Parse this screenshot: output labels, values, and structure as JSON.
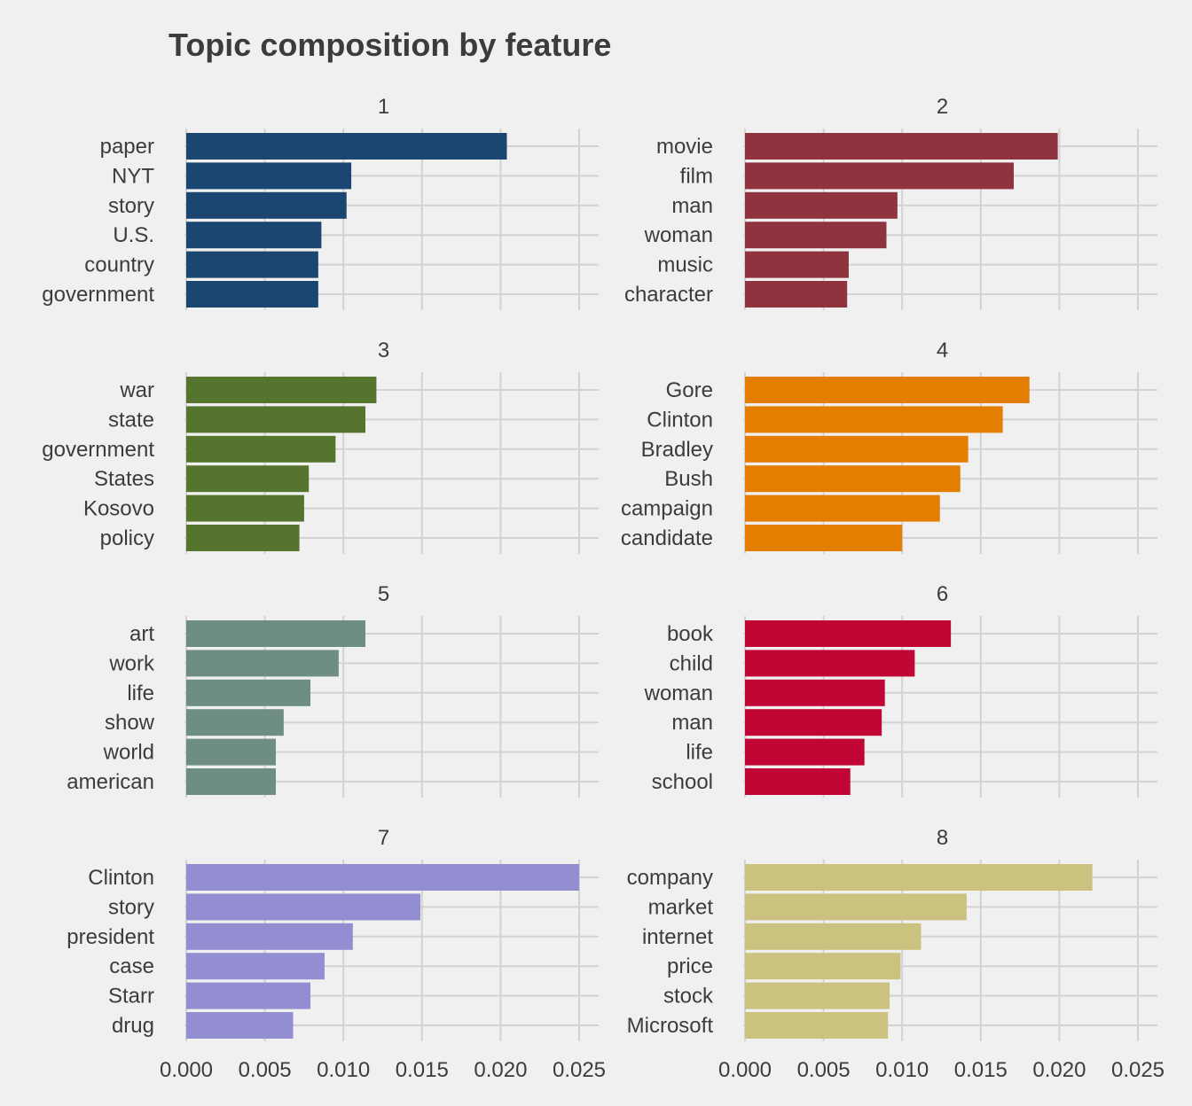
{
  "chart_data": {
    "type": "bar",
    "orientation": "horizontal",
    "title": "Topic composition by feature",
    "xlabel": "",
    "ylabel": "",
    "xlim": [
      0,
      0.026
    ],
    "x_ticks": [
      "0.000",
      "0.005",
      "0.010",
      "0.015",
      "0.020",
      "0.025"
    ],
    "x_tick_values": [
      0,
      0.005,
      0.01,
      0.015,
      0.02,
      0.025
    ],
    "grid": true,
    "legend": "none",
    "panels": [
      {
        "label": "1",
        "color": "#1b4671",
        "categories": [
          "paper",
          "NYT",
          "story",
          "U.S.",
          "country",
          "government"
        ],
        "values": [
          0.0204,
          0.0105,
          0.0102,
          0.0086,
          0.0084,
          0.0084
        ]
      },
      {
        "label": "2",
        "color": "#8f343e",
        "categories": [
          "movie",
          "film",
          "man",
          "woman",
          "music",
          "character"
        ],
        "values": [
          0.0199,
          0.0171,
          0.0097,
          0.009,
          0.0066,
          0.0065
        ]
      },
      {
        "label": "3",
        "color": "#55752f",
        "categories": [
          "war",
          "state",
          "government",
          "States",
          "Kosovo",
          "policy"
        ],
        "values": [
          0.0121,
          0.0114,
          0.0095,
          0.0078,
          0.0075,
          0.0072
        ]
      },
      {
        "label": "4",
        "color": "#e37e00",
        "categories": [
          "Gore",
          "Clinton",
          "Bradley",
          "Bush",
          "campaign",
          "candidate"
        ],
        "values": [
          0.0181,
          0.0164,
          0.0142,
          0.0137,
          0.0124,
          0.01
        ]
      },
      {
        "label": "5",
        "color": "#6e8e84",
        "categories": [
          "art",
          "work",
          "life",
          "show",
          "world",
          "american"
        ],
        "values": [
          0.0114,
          0.0097,
          0.0079,
          0.0062,
          0.0057,
          0.0057
        ]
      },
      {
        "label": "6",
        "color": "#c10534",
        "categories": [
          "book",
          "child",
          "woman",
          "man",
          "life",
          "school"
        ],
        "values": [
          0.0131,
          0.0108,
          0.0089,
          0.0087,
          0.0076,
          0.0067
        ]
      },
      {
        "label": "7",
        "color": "#938dd2",
        "categories": [
          "Clinton",
          "story",
          "president",
          "case",
          "Starr",
          "drug"
        ],
        "values": [
          0.025,
          0.0149,
          0.0106,
          0.0088,
          0.0079,
          0.0068
        ]
      },
      {
        "label": "8",
        "color": "#cac27e",
        "categories": [
          "company",
          "market",
          "internet",
          "price",
          "stock",
          "Microsoft"
        ],
        "values": [
          0.0221,
          0.0141,
          0.0112,
          0.0099,
          0.0092,
          0.0091
        ]
      }
    ]
  }
}
